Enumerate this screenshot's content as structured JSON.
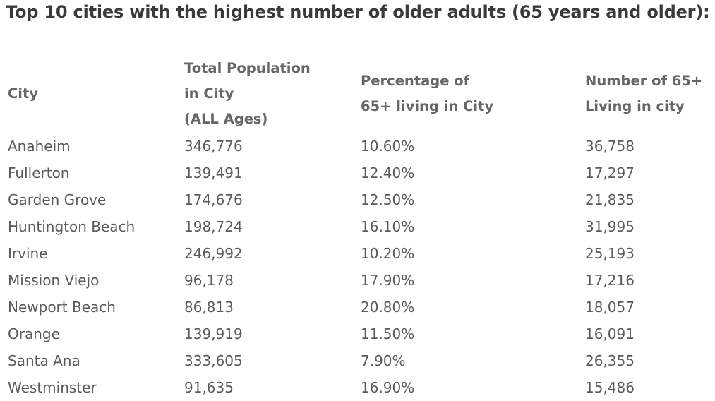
{
  "title": "Top 10 cities with the highest number of older adults (65 years and older):",
  "columns": {
    "city": [
      "City"
    ],
    "total": [
      "Total Population",
      "in City",
      "(ALL Ages)"
    ],
    "pct": [
      "Percentage of",
      "65+ living in City"
    ],
    "num": [
      "Number of 65+",
      "Living in city"
    ]
  },
  "rows": [
    {
      "city": "Anaheim",
      "total": "346,776",
      "pct": "10.60%",
      "num": "36,758"
    },
    {
      "city": "Fullerton",
      "total": "139,491",
      "pct": "12.40%",
      "num": "17,297"
    },
    {
      "city": "Garden Grove",
      "total": "174,676",
      "pct": "12.50%",
      "num": "21,835"
    },
    {
      "city": "Huntington Beach",
      "total": "198,724",
      "pct": "16.10%",
      "num": "31,995"
    },
    {
      "city": "Irvine",
      "total": "246,992",
      "pct": "10.20%",
      "num": "25,193"
    },
    {
      "city": "Mission Viejo",
      "total": "96,178",
      "pct": "17.90%",
      "num": "17,216"
    },
    {
      "city": "Newport Beach",
      "total": "86,813",
      "pct": "20.80%",
      "num": "18,057"
    },
    {
      "city": "Orange",
      "total": "139,919",
      "pct": "11.50%",
      "num": "16,091"
    },
    {
      "city": "Santa Ana",
      "total": "333,605",
      "pct": "7.90%",
      "num": "26,355"
    },
    {
      "city": "Westminster",
      "total": "91,635",
      "pct": "16.90%",
      "num": "15,486"
    }
  ]
}
